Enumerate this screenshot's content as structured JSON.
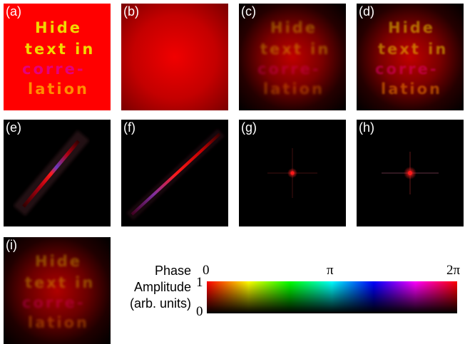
{
  "panels": [
    {
      "label": "(a)"
    },
    {
      "label": "(b)"
    },
    {
      "label": "(c)"
    },
    {
      "label": "(d)"
    },
    {
      "label": "(e)"
    },
    {
      "label": "(f)"
    },
    {
      "label": "(g)"
    },
    {
      "label": "(h)"
    },
    {
      "label": "(i)"
    }
  ],
  "hidden_text_lines": [
    "Hide",
    "text in",
    "corre-",
    "lation"
  ],
  "colorbar": {
    "phase_label": "Phase",
    "amplitude_label": "Amplitude",
    "units_label": "(arb. units)",
    "phase_ticks": [
      "0",
      "π",
      "2π"
    ],
    "amplitude_ticks": [
      "1",
      "0"
    ]
  },
  "colors": {
    "background_a": "#ff0000",
    "text_yellow": "#f2d800",
    "text_magenta": "#e6007a",
    "text_orange": "#ff8c00"
  }
}
